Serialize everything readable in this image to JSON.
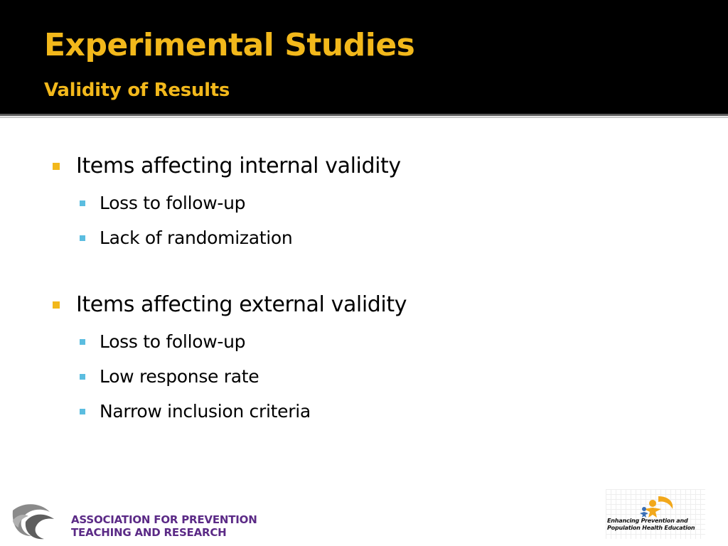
{
  "slide": {
    "title": "Experimental Studies",
    "subtitle": "Validity of Results",
    "accent_color": "#f2b81b",
    "sub_bullet_color": "#5bbde0"
  },
  "bullets": [
    {
      "text": "Items affecting internal validity",
      "items": [
        "Loss to follow-up",
        "Lack of randomization"
      ]
    },
    {
      "text": "Items affecting external validity",
      "items": [
        "Loss to follow-up",
        "Low response rate",
        "Narrow inclusion criteria"
      ]
    }
  ],
  "footer": {
    "left_logo": {
      "icon": "wave-swirl-logo-icon",
      "line1": "ASSOCIATION FOR PREVENTION",
      "line2": "TEACHING AND RESEARCH",
      "color": "#5b2a86"
    },
    "right_logo": {
      "icon": "people-figures-logo-icon",
      "line1": "Enhancing Prevention and",
      "line2": "Population Health Education"
    }
  }
}
